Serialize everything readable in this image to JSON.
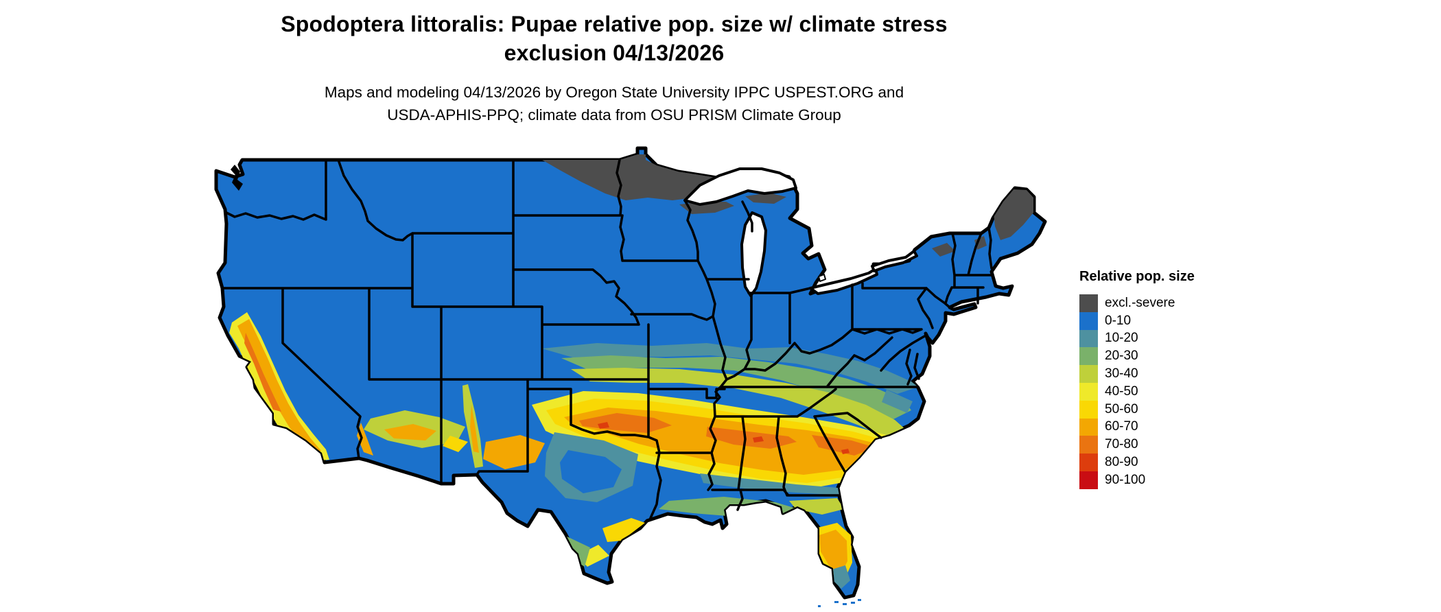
{
  "title": {
    "line1": "Spodoptera littoralis: Pupae relative pop. size w/ climate stress",
    "line2": "exclusion 04/13/2026"
  },
  "subtitle": {
    "line1": "Maps and modeling 04/13/2026 by Oregon State University IPPC USPEST.ORG and",
    "line2": "USDA-APHIS-PPQ; climate data from OSU PRISM Climate Group"
  },
  "legend": {
    "title": "Relative pop. size",
    "items": [
      {
        "label": "excl.-severe",
        "color": "#4D4D4D"
      },
      {
        "label": "0-10",
        "color": "#1B71CB"
      },
      {
        "label": "10-20",
        "color": "#4E91A0"
      },
      {
        "label": "20-30",
        "color": "#7AB16A"
      },
      {
        "label": "30-40",
        "color": "#BFD03A"
      },
      {
        "label": "40-50",
        "color": "#EFE92A"
      },
      {
        "label": "50-60",
        "color": "#F9D804"
      },
      {
        "label": "60-70",
        "color": "#F3A702"
      },
      {
        "label": "70-80",
        "color": "#EA7411"
      },
      {
        "label": "80-90",
        "color": "#DD3D0D"
      },
      {
        "label": "90-100",
        "color": "#C90D13"
      }
    ]
  },
  "map": {
    "region": "Continental United States",
    "base_color": "#1B71CB",
    "excluded_color": "#4D4D4D",
    "state_border_color": "#000000",
    "background_color": "#FFFFFF"
  }
}
